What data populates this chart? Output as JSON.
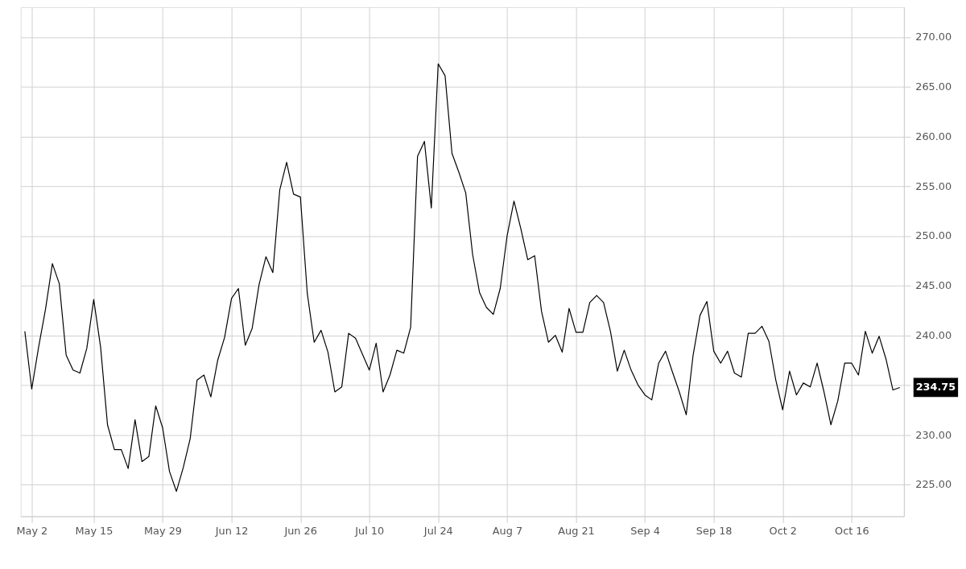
{
  "chart_data": {
    "type": "line",
    "categories": [
      null,
      "May 2",
      null,
      null,
      null,
      null,
      null,
      null,
      null,
      null,
      "May 15",
      null,
      null,
      null,
      null,
      null,
      null,
      null,
      null,
      null,
      "May 29",
      null,
      null,
      null,
      null,
      null,
      null,
      null,
      null,
      null,
      "Jun 12",
      null,
      null,
      null,
      null,
      null,
      null,
      null,
      null,
      null,
      "Jun 26",
      null,
      null,
      null,
      null,
      null,
      null,
      null,
      null,
      null,
      "Jul 10",
      null,
      null,
      null,
      null,
      null,
      null,
      null,
      null,
      null,
      "Jul 24",
      null,
      null,
      null,
      null,
      null,
      null,
      null,
      null,
      null,
      "Aug 7",
      null,
      null,
      null,
      null,
      null,
      null,
      null,
      null,
      null,
      "Aug 21",
      null,
      null,
      null,
      null,
      null,
      null,
      null,
      null,
      null,
      "Sep 4",
      null,
      null,
      null,
      null,
      null,
      null,
      null,
      null,
      null,
      "Sep 18",
      null,
      null,
      null,
      null,
      null,
      null,
      null,
      null,
      null,
      "Oct 2",
      null,
      null,
      null,
      null,
      null,
      null,
      null,
      null,
      null,
      "Oct 16",
      null,
      null,
      null,
      null,
      null,
      null,
      null
    ],
    "series": [
      {
        "color": "#000000",
        "values": [
          240.4,
          234.6,
          238.8,
          242.6,
          247.2,
          245.2,
          238.0,
          236.5,
          236.2,
          238.7,
          243.6,
          238.8,
          231.0,
          228.5,
          228.5,
          226.6,
          231.5,
          227.3,
          227.8,
          232.9,
          230.7,
          226.3,
          224.3,
          226.7,
          229.6,
          235.5,
          236.0,
          233.8,
          237.5,
          239.8,
          243.7,
          244.7,
          239.0,
          240.7,
          245.1,
          247.9,
          246.3,
          254.6,
          257.4,
          254.2,
          253.9,
          244.2,
          239.3,
          240.5,
          238.3,
          234.3,
          234.8,
          240.2,
          239.7,
          238.1,
          236.5,
          239.2,
          234.3,
          236.0,
          238.5,
          238.2,
          240.8,
          258.0,
          259.5,
          252.8,
          267.3,
          266.1,
          258.3,
          256.4,
          254.3,
          248.1,
          244.3,
          242.8,
          242.1,
          244.7,
          250.0,
          253.5,
          250.7,
          247.6,
          248.0,
          242.4,
          239.3,
          240.0,
          238.3,
          242.7,
          240.3,
          240.3,
          243.3,
          244.0,
          243.3,
          240.4,
          236.4,
          238.5,
          236.5,
          235.0,
          234.0,
          233.5,
          237.2,
          238.4,
          236.3,
          234.3,
          232.0,
          238.0,
          242.0,
          243.4,
          238.4,
          237.2,
          238.4,
          236.2,
          235.8,
          240.2,
          240.2,
          240.9,
          239.4,
          235.5,
          232.5,
          236.4,
          234.0,
          235.2,
          234.8,
          237.2,
          234.3,
          231.0,
          233.4,
          237.2,
          237.2,
          236.0,
          240.4,
          238.2,
          239.9,
          237.6,
          234.5,
          234.75
        ]
      }
    ],
    "ylim": [
      221.8,
      273.0
    ],
    "yticks": [
      {
        "value": 225,
        "label": "225.00"
      },
      {
        "value": 230,
        "label": "230.00"
      },
      {
        "value": 235,
        "label": null
      },
      {
        "value": 240,
        "label": "240.00"
      },
      {
        "value": 245,
        "label": "245.00"
      },
      {
        "value": 250,
        "label": "250.00"
      },
      {
        "value": 255,
        "label": "255.00"
      },
      {
        "value": 260,
        "label": "260.00"
      },
      {
        "value": 265,
        "label": "265.00"
      },
      {
        "value": 270,
        "label": "270.00"
      }
    ],
    "grid": true,
    "line_style": "solid",
    "annotations": [
      "234.75"
    ]
  }
}
